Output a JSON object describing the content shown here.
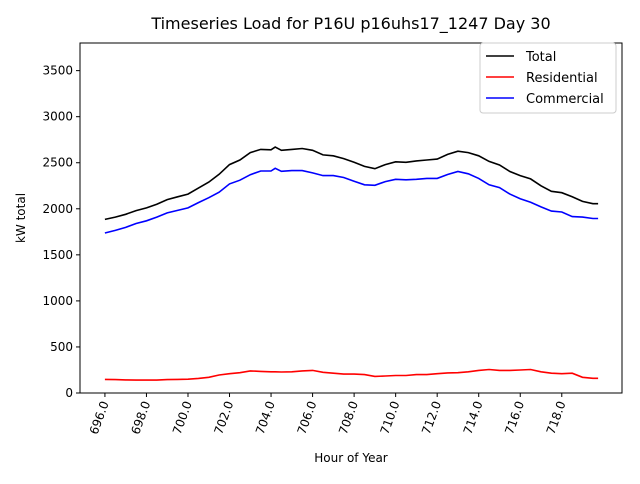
{
  "chart_data": {
    "type": "line",
    "title": "Timeseries Load for P16U p16uhs17_1247  Day 30",
    "xlabel": "Hour of Year",
    "ylabel": "kW total",
    "xlim": [
      694.8,
      720.9
    ],
    "ylim": [
      0,
      3800
    ],
    "xticks": [
      "696.0",
      "698.0",
      "700.0",
      "702.0",
      "704.0",
      "706.0",
      "708.0",
      "710.0",
      "712.0",
      "714.0",
      "716.0",
      "718.0"
    ],
    "xtick_values": [
      696,
      698,
      700,
      702,
      704,
      706,
      708,
      710,
      712,
      714,
      716,
      718
    ],
    "yticks": [
      "0",
      "500",
      "1000",
      "1500",
      "2000",
      "2500",
      "3000",
      "3500"
    ],
    "ytick_values": [
      0,
      500,
      1000,
      1500,
      2000,
      2500,
      3000,
      3500
    ],
    "legend_position": "top-right",
    "x": [
      696,
      696.5,
      697,
      697.5,
      698,
      698.5,
      699,
      699.5,
      700,
      700.5,
      701,
      701.5,
      702,
      702.5,
      703,
      703.5,
      704,
      704.2,
      704.5,
      705,
      705.5,
      706,
      706.5,
      707,
      707.5,
      708,
      708.5,
      709,
      709.5,
      710,
      710.5,
      711,
      711.5,
      712,
      712.5,
      713,
      713.5,
      714,
      714.5,
      715,
      715.5,
      716,
      716.5,
      717,
      717.5,
      718,
      718.5,
      719,
      719.5,
      719.75
    ],
    "series": [
      {
        "name": "Total",
        "color": "#000000",
        "values": [
          1885,
          1910,
          1940,
          1980,
          2010,
          2050,
          2100,
          2130,
          2160,
          2225,
          2290,
          2375,
          2480,
          2530,
          2610,
          2645,
          2640,
          2670,
          2635,
          2645,
          2655,
          2635,
          2585,
          2575,
          2545,
          2505,
          2460,
          2435,
          2480,
          2510,
          2505,
          2520,
          2530,
          2540,
          2590,
          2625,
          2610,
          2575,
          2515,
          2475,
          2405,
          2360,
          2325,
          2250,
          2190,
          2175,
          2130,
          2080,
          2055,
          2055
        ]
      },
      {
        "name": "Residential",
        "color": "#ff0000",
        "values": [
          148,
          145,
          142,
          140,
          140,
          140,
          145,
          148,
          150,
          158,
          170,
          195,
          210,
          220,
          240,
          235,
          230,
          230,
          228,
          230,
          240,
          245,
          225,
          215,
          205,
          205,
          200,
          180,
          185,
          190,
          190,
          200,
          200,
          210,
          218,
          220,
          230,
          245,
          255,
          245,
          245,
          250,
          255,
          230,
          215,
          210,
          215,
          170,
          160,
          160
        ]
      },
      {
        "name": "Commercial",
        "color": "#0000ff",
        "values": [
          1737,
          1765,
          1798,
          1840,
          1870,
          1910,
          1955,
          1982,
          2010,
          2067,
          2120,
          2180,
          2270,
          2310,
          2370,
          2410,
          2410,
          2440,
          2407,
          2415,
          2415,
          2390,
          2360,
          2360,
          2340,
          2300,
          2260,
          2255,
          2295,
          2320,
          2315,
          2320,
          2330,
          2330,
          2372,
          2405,
          2380,
          2330,
          2260,
          2230,
          2160,
          2110,
          2070,
          2020,
          1975,
          1965,
          1915,
          1910,
          1895,
          1895
        ]
      }
    ]
  }
}
